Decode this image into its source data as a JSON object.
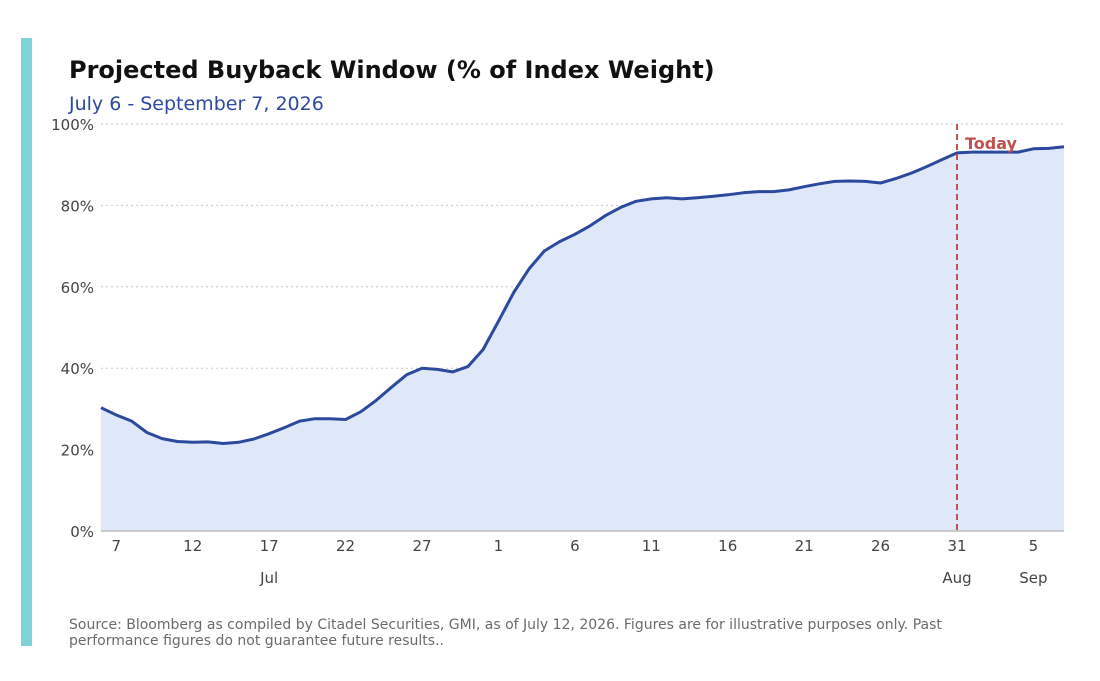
{
  "chart_data": {
    "type": "area",
    "title": "Projected Buyback Window (% of Index Weight)",
    "subtitle": "July 6 - September 7, 2026",
    "x": [
      "2026-07-06",
      "2026-07-07",
      "2026-07-08",
      "2026-07-09",
      "2026-07-10",
      "2026-07-11",
      "2026-07-12",
      "2026-07-13",
      "2026-07-14",
      "2026-07-15",
      "2026-07-16",
      "2026-07-17",
      "2026-07-18",
      "2026-07-19",
      "2026-07-20",
      "2026-07-21",
      "2026-07-22",
      "2026-07-23",
      "2026-07-24",
      "2026-07-25",
      "2026-07-26",
      "2026-07-27",
      "2026-07-28",
      "2026-07-29",
      "2026-07-30",
      "2026-07-31",
      "2026-08-01",
      "2026-08-02",
      "2026-08-03",
      "2026-08-04",
      "2026-08-05",
      "2026-08-06",
      "2026-08-07",
      "2026-08-08",
      "2026-08-09",
      "2026-08-10",
      "2026-08-11",
      "2026-08-12",
      "2026-08-13",
      "2026-08-14",
      "2026-08-15",
      "2026-08-16",
      "2026-08-17",
      "2026-08-18",
      "2026-08-19",
      "2026-08-20",
      "2026-08-21",
      "2026-08-22",
      "2026-08-23",
      "2026-08-24",
      "2026-08-25",
      "2026-08-26",
      "2026-08-27",
      "2026-08-28",
      "2026-08-29",
      "2026-08-30",
      "2026-08-31",
      "2026-09-01",
      "2026-09-02",
      "2026-09-03",
      "2026-09-04",
      "2026-09-05",
      "2026-09-06",
      "2026-09-07"
    ],
    "series": [
      {
        "values": [
          30.3,
          28.5,
          27.0,
          24.2,
          22.7,
          22.0,
          21.8,
          21.9,
          21.5,
          21.8,
          22.6,
          23.9,
          25.4,
          27.0,
          27.6,
          27.6,
          27.4,
          29.3,
          32.1,
          35.3,
          38.4,
          40.0,
          39.7,
          39.1,
          40.4,
          44.6,
          51.5,
          58.6,
          64.4,
          68.8,
          71.1,
          72.9,
          75.0,
          77.5,
          79.5,
          81.0,
          81.6,
          81.9,
          81.6,
          81.9,
          82.2,
          82.6,
          83.1,
          83.4,
          83.4,
          83.8,
          84.6,
          85.3,
          85.9,
          86.0,
          85.9,
          85.5,
          86.6,
          87.9,
          89.5,
          91.2,
          92.9,
          93.1,
          93.1,
          93.1,
          93.1,
          93.9,
          94.0,
          94.4
        ],
        "color": "#2b4a9d",
        "fill": "#dfe8f8"
      }
    ],
    "ylim": [
      0,
      100
    ],
    "y_ticks": [
      0,
      20,
      40,
      60,
      80,
      100
    ],
    "y_tick_labels": [
      "0%",
      "20%",
      "40%",
      "60%",
      "80%",
      "100%"
    ],
    "x_ticks": [
      "2026-07-07",
      "2026-07-12",
      "2026-07-17",
      "2026-07-22",
      "2026-07-27",
      "2026-08-01",
      "2026-08-06",
      "2026-08-11",
      "2026-08-16",
      "2026-08-21",
      "2026-08-26",
      "2026-08-31",
      "2026-09-05"
    ],
    "x_tick_labels": [
      "7",
      "12",
      "17",
      "22",
      "27",
      "1",
      "6",
      "11",
      "16",
      "21",
      "26",
      "31",
      "5"
    ],
    "month_labels": [
      {
        "date": "2026-07-17",
        "label": "Jul"
      },
      {
        "date": "2026-08-31",
        "label": "Aug"
      },
      {
        "date": "2026-09-05",
        "label": "Sep"
      }
    ],
    "grid": "horizontal dotted",
    "annotation": {
      "date": "2026-08-31",
      "label": "Today",
      "color": "#c0504d"
    }
  },
  "accent_color": "#7dd3d8",
  "source_text": "Source: Bloomberg as compiled by Citadel Securities, GMI, as of July 12, 2026. Figures are for illustrative purposes only. Past performance figures do not guarantee future results.."
}
